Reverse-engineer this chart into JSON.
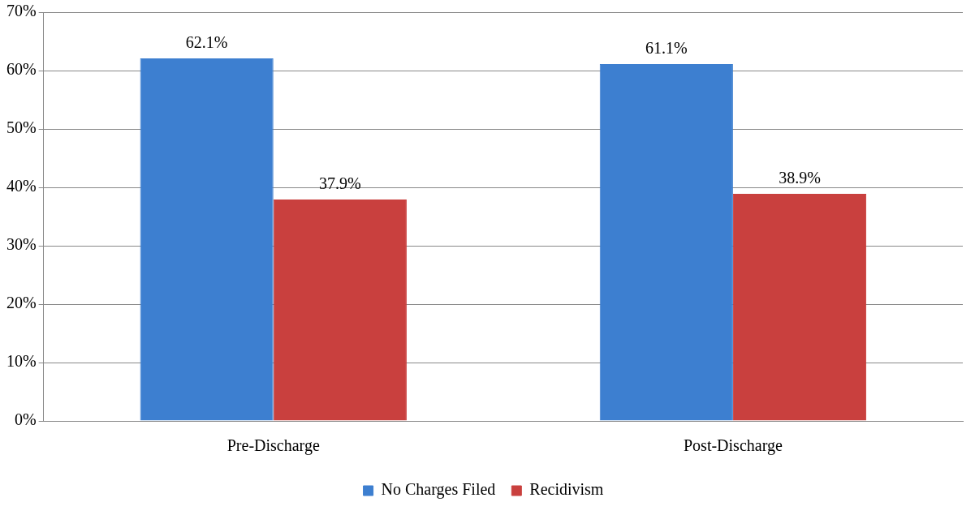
{
  "chart_data": {
    "type": "bar",
    "categories": [
      "Pre-Discharge",
      "Post-Discharge"
    ],
    "series": [
      {
        "name": "No Charges Filed",
        "color": "#3d7fd0",
        "values": [
          62.1,
          61.1
        ],
        "value_labels": [
          "62.1%",
          "61.1%"
        ]
      },
      {
        "name": "Recidivism",
        "color": "#c9403e",
        "values": [
          37.9,
          38.9
        ],
        "value_labels": [
          "37.9%",
          "38.9%"
        ]
      }
    ],
    "ylim": [
      0,
      70
    ],
    "yticks": [
      {
        "value": 0,
        "label": "0%"
      },
      {
        "value": 10,
        "label": "10%"
      },
      {
        "value": 20,
        "label": "20%"
      },
      {
        "value": 30,
        "label": "30%"
      },
      {
        "value": 40,
        "label": "40%"
      },
      {
        "value": 50,
        "label": "50%"
      },
      {
        "value": 60,
        "label": "60%"
      },
      {
        "value": 70,
        "label": "70%"
      }
    ],
    "grid": "y",
    "legend": "bottom"
  }
}
